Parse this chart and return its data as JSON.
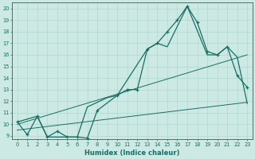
{
  "xlabel": "Humidex (Indice chaleur)",
  "background_color": "#cce9e4",
  "grid_color": "#b0d8d0",
  "line_color": "#1a6e63",
  "xlim_min": -0.5,
  "xlim_max": 23.5,
  "ylim_min": 8.7,
  "ylim_max": 20.5,
  "xtick_vals": [
    0,
    1,
    2,
    3,
    4,
    5,
    6,
    7,
    8,
    9,
    10,
    11,
    12,
    13,
    14,
    15,
    16,
    17,
    18,
    19,
    20,
    21,
    22,
    23
  ],
  "ytick_vals": [
    9,
    10,
    11,
    12,
    13,
    14,
    15,
    16,
    17,
    18,
    19,
    20
  ],
  "line1_x": [
    0,
    1,
    2,
    3,
    4,
    5,
    6,
    7,
    8,
    10,
    11,
    12,
    13,
    14,
    15,
    16,
    17,
    18,
    19,
    20,
    21,
    22,
    23
  ],
  "line1_y": [
    10.2,
    9.1,
    10.7,
    8.9,
    9.4,
    8.9,
    8.9,
    8.8,
    11.2,
    12.5,
    13.0,
    13.0,
    16.5,
    17.0,
    18.0,
    19.0,
    20.2,
    18.8,
    16.3,
    16.0,
    16.7,
    14.2,
    13.2
  ],
  "line2_x": [
    0,
    2,
    3,
    6,
    7,
    9,
    10,
    13,
    14,
    15,
    17,
    19,
    20,
    21,
    22,
    23
  ],
  "line2_y": [
    10.2,
    10.7,
    8.9,
    8.9,
    11.5,
    12.3,
    12.5,
    16.5,
    17.0,
    16.7,
    20.2,
    16.0,
    16.0,
    16.7,
    15.8,
    11.8
  ],
  "line3_x": [
    0,
    23
  ],
  "line3_y": [
    10.0,
    16.0
  ],
  "line4_x": [
    0,
    23
  ],
  "line4_y": [
    9.5,
    11.9
  ]
}
